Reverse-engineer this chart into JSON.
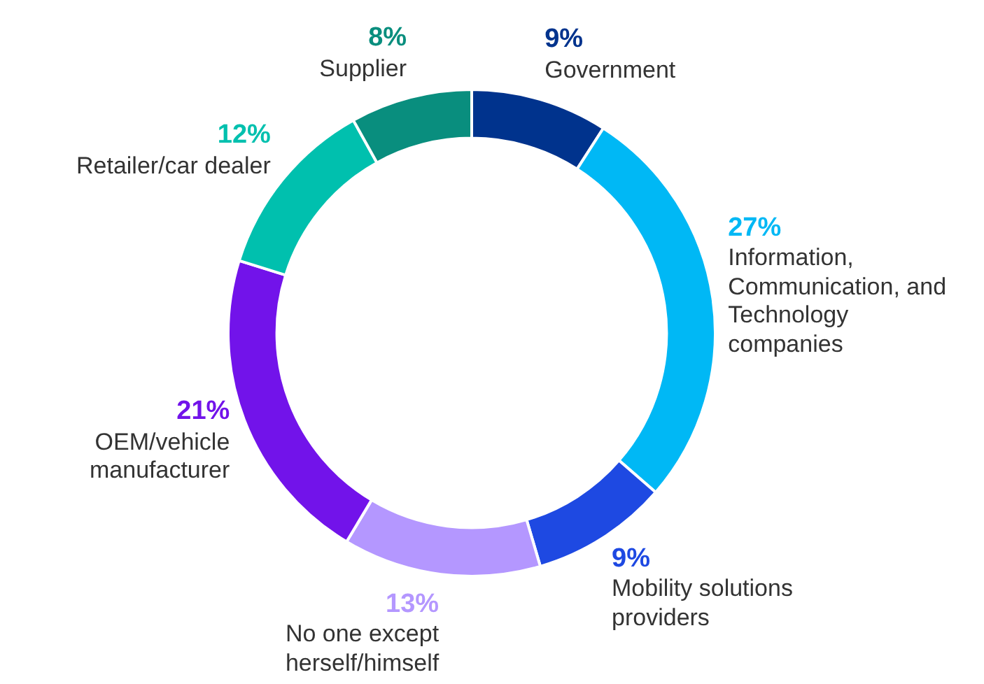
{
  "chart_data": {
    "type": "donut",
    "categories": [
      "Government",
      "Information, Communication, and Technology companies",
      "Mobility solutions providers",
      "No one except herself/himself",
      "OEM/vehicle manufacturer",
      "Retailer/car dealer",
      "Supplier"
    ],
    "values": [
      9,
      27,
      9,
      13,
      21,
      12,
      8
    ],
    "value_labels": [
      "9%",
      "27%",
      "9%",
      "13%",
      "21%",
      "12%",
      "8%"
    ],
    "colors": [
      "#00338d",
      "#00b8f5",
      "#1e49e2",
      "#b497ff",
      "#7213ea",
      "#00c0ae",
      "#098e7e"
    ],
    "legend": false
  }
}
